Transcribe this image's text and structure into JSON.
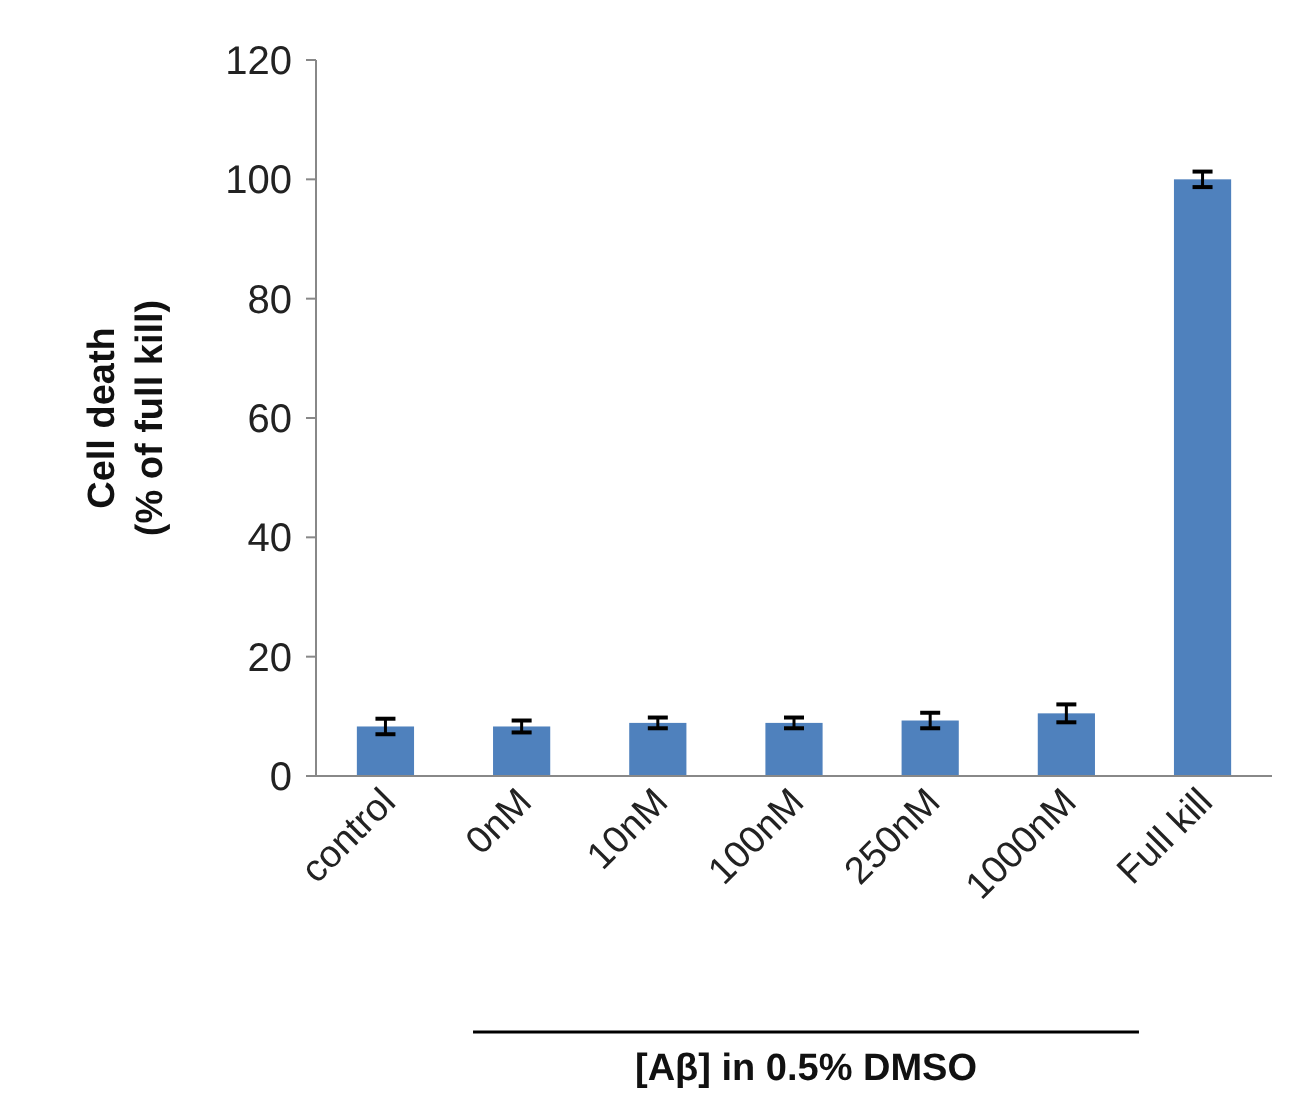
{
  "chart_data": {
    "type": "bar",
    "ylabel": "Cell death\n(% of full kill)",
    "xlabel": "[Aβ] in 0.5% DMSO",
    "categories": [
      "control",
      "0nM",
      "10nM",
      "100nM",
      "250nM",
      "1000nM",
      "Full kill"
    ],
    "values": [
      8.3,
      8.3,
      8.9,
      8.9,
      9.3,
      10.5,
      100
    ],
    "errors": [
      1.3,
      1.0,
      0.9,
      0.9,
      1.3,
      1.5,
      1.3
    ],
    "color": "#4f81bd",
    "ylim": [
      0,
      120
    ],
    "yticks": [
      0,
      20,
      40,
      60,
      80,
      100,
      120
    ],
    "grid": false
  }
}
